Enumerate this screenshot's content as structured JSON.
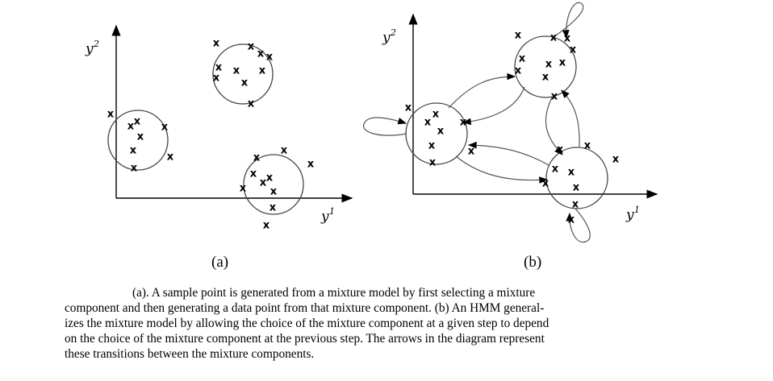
{
  "panel_a": {
    "label": "(a)",
    "x_axis_label": "y",
    "x_axis_sup": "1",
    "y_axis_label": "y",
    "y_axis_sup": "2",
    "point_glyph": "x"
  },
  "panel_b": {
    "label": "(b)",
    "x_axis_label": "y",
    "x_axis_sup": "1",
    "y_axis_label": "y",
    "y_axis_sup": "2",
    "point_glyph": "x"
  },
  "caption": {
    "line1": "(a). A sample point is generated from a mixture model by first selecting a mixture",
    "line2": "component and then generating a data point from that mixture component. (b) An HMM general-",
    "line3": "izes the mixture model by allowing the choice of the mixture component at a given step to depend",
    "line4": "on the choice of the mixture component at the previous step. The arrows in the diagram represent",
    "line5": "these transitions between the mixture components."
  }
}
